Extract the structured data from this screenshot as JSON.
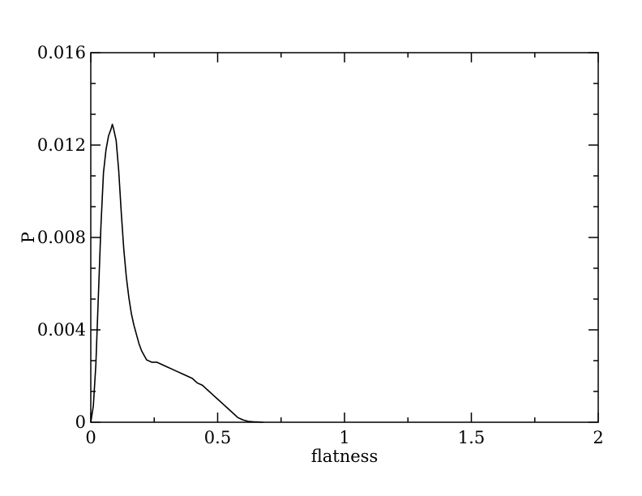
{
  "chart_data": {
    "type": "line",
    "title": "",
    "xlabel": "flatness",
    "ylabel": "P",
    "xlim": [
      0,
      2
    ],
    "ylim": [
      0,
      0.016
    ],
    "grid": false,
    "x_ticks": [
      0,
      0.5,
      1,
      1.5,
      2
    ],
    "x_tick_labels": [
      "0",
      "0.5",
      "1",
      "1.5",
      "2"
    ],
    "y_ticks": [
      0,
      0.004,
      0.008,
      0.012,
      0.016
    ],
    "y_tick_labels": [
      "0",
      "0.004",
      "0.008",
      "0.012",
      "0.016"
    ],
    "series": [
      {
        "color": "#000000",
        "x": [
          0.0,
          0.01,
          0.02,
          0.03,
          0.04,
          0.05,
          0.06,
          0.07,
          0.08,
          0.085,
          0.09,
          0.1,
          0.11,
          0.12,
          0.13,
          0.14,
          0.15,
          0.16,
          0.17,
          0.18,
          0.19,
          0.2,
          0.21,
          0.22,
          0.24,
          0.26,
          0.28,
          0.3,
          0.32,
          0.34,
          0.36,
          0.38,
          0.4,
          0.42,
          0.44,
          0.46,
          0.48,
          0.5,
          0.52,
          0.54,
          0.56,
          0.58,
          0.6,
          0.62,
          0.64,
          0.66,
          0.68
        ],
        "y": [
          0.0,
          0.0007,
          0.0025,
          0.0055,
          0.0085,
          0.0108,
          0.0118,
          0.0124,
          0.0127,
          0.0129,
          0.0127,
          0.0122,
          0.0109,
          0.0091,
          0.0075,
          0.0063,
          0.0054,
          0.0047,
          0.0042,
          0.0038,
          0.0034,
          0.0031,
          0.0029,
          0.0027,
          0.0026,
          0.0026,
          0.0025,
          0.0024,
          0.0023,
          0.0022,
          0.0021,
          0.002,
          0.0019,
          0.0017,
          0.0016,
          0.0014,
          0.0012,
          0.001,
          0.0008,
          0.0006,
          0.0004,
          0.0002,
          0.0001,
          4e-05,
          2e-05,
          1e-05,
          0.0
        ]
      }
    ]
  }
}
